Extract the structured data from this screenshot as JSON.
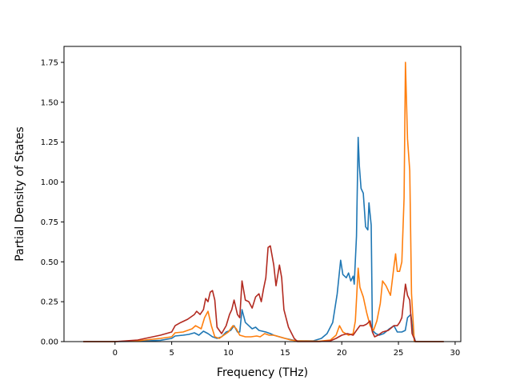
{
  "chart_data": {
    "type": "line",
    "title": "",
    "xlabel": "Frequency (THz)",
    "ylabel": "Partial Density of States",
    "xlim": [
      -4.5,
      30.5
    ],
    "ylim": [
      0,
      1.85
    ],
    "grid": false,
    "xticks": [
      0,
      5,
      10,
      15,
      20,
      25,
      30
    ],
    "xtick_labels": [
      "0",
      "5",
      "10",
      "15",
      "20",
      "25",
      "30"
    ],
    "yticks": [
      0,
      0.25,
      0.5,
      0.75,
      1.0,
      1.25,
      1.5,
      1.75
    ],
    "ytick_labels": [
      "0.00",
      "0.25",
      "0.50",
      "0.75",
      "1.00",
      "1.25",
      "1.50",
      "1.75"
    ],
    "series": [
      {
        "color": "#1f77b4",
        "points": [
          [
            -2.8,
            0
          ],
          [
            0,
            0
          ],
          [
            2,
            0.002
          ],
          [
            4,
            0.008
          ],
          [
            5,
            0.02
          ],
          [
            5.3,
            0.035
          ],
          [
            6,
            0.04
          ],
          [
            6.5,
            0.045
          ],
          [
            7,
            0.055
          ],
          [
            7.4,
            0.04
          ],
          [
            7.8,
            0.065
          ],
          [
            8.2,
            0.05
          ],
          [
            8.6,
            0.03
          ],
          [
            9,
            0.02
          ],
          [
            9.4,
            0.03
          ],
          [
            9.8,
            0.06
          ],
          [
            10.2,
            0.07
          ],
          [
            10.5,
            0.1
          ],
          [
            10.8,
            0.06
          ],
          [
            11,
            0.06
          ],
          [
            11.2,
            0.2
          ],
          [
            11.5,
            0.12
          ],
          [
            11.8,
            0.1
          ],
          [
            12.1,
            0.08
          ],
          [
            12.4,
            0.09
          ],
          [
            12.7,
            0.07
          ],
          [
            13,
            0.065
          ],
          [
            13.3,
            0.06
          ],
          [
            13.7,
            0.05
          ],
          [
            14,
            0.04
          ],
          [
            14.5,
            0.03
          ],
          [
            15,
            0.02
          ],
          [
            16,
            0.005
          ],
          [
            17.5,
            0.005
          ],
          [
            18.2,
            0.02
          ],
          [
            18.7,
            0.05
          ],
          [
            19.2,
            0.12
          ],
          [
            19.6,
            0.3
          ],
          [
            19.9,
            0.51
          ],
          [
            20.1,
            0.42
          ],
          [
            20.4,
            0.4
          ],
          [
            20.6,
            0.43
          ],
          [
            20.8,
            0.38
          ],
          [
            21.0,
            0.41
          ],
          [
            21.1,
            0.36
          ],
          [
            21.3,
            0.66
          ],
          [
            21.45,
            1.28
          ],
          [
            21.55,
            1.1
          ],
          [
            21.7,
            0.96
          ],
          [
            21.9,
            0.93
          ],
          [
            22.1,
            0.72
          ],
          [
            22.3,
            0.7
          ],
          [
            22.4,
            0.87
          ],
          [
            22.6,
            0.73
          ],
          [
            22.7,
            0.07
          ],
          [
            23.0,
            0.05
          ],
          [
            23.3,
            0.04
          ],
          [
            23.7,
            0.05
          ],
          [
            24.2,
            0.08
          ],
          [
            24.6,
            0.1
          ],
          [
            24.9,
            0.06
          ],
          [
            25.3,
            0.06
          ],
          [
            25.6,
            0.07
          ],
          [
            25.8,
            0.15
          ],
          [
            26.1,
            0.17
          ],
          [
            26.3,
            0.05
          ],
          [
            26.5,
            0
          ],
          [
            29,
            0
          ]
        ]
      },
      {
        "color": "#ff7f0e",
        "points": [
          [
            -2.8,
            0
          ],
          [
            0,
            0
          ],
          [
            2,
            0.005
          ],
          [
            4,
            0.02
          ],
          [
            5,
            0.03
          ],
          [
            5.3,
            0.055
          ],
          [
            6,
            0.06
          ],
          [
            6.8,
            0.08
          ],
          [
            7.1,
            0.1
          ],
          [
            7.6,
            0.08
          ],
          [
            7.9,
            0.15
          ],
          [
            8.2,
            0.19
          ],
          [
            8.5,
            0.1
          ],
          [
            8.8,
            0.03
          ],
          [
            9.2,
            0.02
          ],
          [
            9.6,
            0.04
          ],
          [
            10,
            0.06
          ],
          [
            10.4,
            0.1
          ],
          [
            10.7,
            0.08
          ],
          [
            11,
            0.04
          ],
          [
            11.5,
            0.03
          ],
          [
            12,
            0.03
          ],
          [
            12.5,
            0.035
          ],
          [
            12.8,
            0.03
          ],
          [
            13.2,
            0.05
          ],
          [
            13.6,
            0.04
          ],
          [
            14,
            0.04
          ],
          [
            14.5,
            0.03
          ],
          [
            15,
            0.02
          ],
          [
            15.5,
            0.01
          ],
          [
            16,
            0.005
          ],
          [
            18,
            0.002
          ],
          [
            19,
            0.01
          ],
          [
            19.5,
            0.04
          ],
          [
            19.8,
            0.1
          ],
          [
            20.1,
            0.06
          ],
          [
            20.6,
            0.04
          ],
          [
            21,
            0.05
          ],
          [
            21.2,
            0.13
          ],
          [
            21.45,
            0.46
          ],
          [
            21.6,
            0.34
          ],
          [
            21.9,
            0.28
          ],
          [
            22.2,
            0.18
          ],
          [
            22.5,
            0.1
          ],
          [
            22.8,
            0.07
          ],
          [
            23.1,
            0.13
          ],
          [
            23.4,
            0.24
          ],
          [
            23.6,
            0.38
          ],
          [
            23.9,
            0.35
          ],
          [
            24.3,
            0.29
          ],
          [
            24.6,
            0.47
          ],
          [
            24.75,
            0.55
          ],
          [
            24.9,
            0.44
          ],
          [
            25.1,
            0.44
          ],
          [
            25.3,
            0.5
          ],
          [
            25.5,
            0.9
          ],
          [
            25.62,
            1.75
          ],
          [
            25.8,
            1.27
          ],
          [
            26.0,
            1.07
          ],
          [
            26.15,
            0.3
          ],
          [
            26.4,
            0
          ],
          [
            29,
            0
          ]
        ]
      },
      {
        "color": "#b22a20",
        "points": [
          [
            -2.8,
            0
          ],
          [
            0,
            0
          ],
          [
            2,
            0.01
          ],
          [
            4,
            0.04
          ],
          [
            5,
            0.06
          ],
          [
            5.3,
            0.1
          ],
          [
            5.8,
            0.12
          ],
          [
            6.4,
            0.14
          ],
          [
            7,
            0.17
          ],
          [
            7.2,
            0.19
          ],
          [
            7.5,
            0.17
          ],
          [
            7.8,
            0.2
          ],
          [
            8.0,
            0.27
          ],
          [
            8.2,
            0.25
          ],
          [
            8.4,
            0.31
          ],
          [
            8.6,
            0.32
          ],
          [
            8.8,
            0.26
          ],
          [
            9.0,
            0.09
          ],
          [
            9.4,
            0.05
          ],
          [
            9.8,
            0.1
          ],
          [
            10.1,
            0.17
          ],
          [
            10.3,
            0.2
          ],
          [
            10.5,
            0.26
          ],
          [
            10.8,
            0.17
          ],
          [
            11,
            0.15
          ],
          [
            11.2,
            0.38
          ],
          [
            11.5,
            0.26
          ],
          [
            11.8,
            0.25
          ],
          [
            12.1,
            0.21
          ],
          [
            12.4,
            0.28
          ],
          [
            12.7,
            0.3
          ],
          [
            12.9,
            0.25
          ],
          [
            13.1,
            0.33
          ],
          [
            13.3,
            0.4
          ],
          [
            13.5,
            0.59
          ],
          [
            13.7,
            0.6
          ],
          [
            14,
            0.48
          ],
          [
            14.2,
            0.35
          ],
          [
            14.5,
            0.48
          ],
          [
            14.7,
            0.4
          ],
          [
            14.9,
            0.2
          ],
          [
            15.3,
            0.09
          ],
          [
            15.8,
            0.02
          ],
          [
            16.1,
            0
          ],
          [
            18,
            0
          ],
          [
            19,
            0.005
          ],
          [
            19.5,
            0.02
          ],
          [
            20,
            0.04
          ],
          [
            20.5,
            0.05
          ],
          [
            21,
            0.04
          ],
          [
            21.3,
            0.07
          ],
          [
            21.6,
            0.1
          ],
          [
            21.9,
            0.1
          ],
          [
            22.2,
            0.11
          ],
          [
            22.5,
            0.13
          ],
          [
            22.7,
            0.06
          ],
          [
            22.9,
            0.03
          ],
          [
            23.2,
            0.04
          ],
          [
            23.6,
            0.06
          ],
          [
            24.1,
            0.07
          ],
          [
            24.6,
            0.1
          ],
          [
            24.9,
            0.1
          ],
          [
            25.1,
            0.12
          ],
          [
            25.3,
            0.15
          ],
          [
            25.5,
            0.28
          ],
          [
            25.62,
            0.36
          ],
          [
            25.8,
            0.29
          ],
          [
            26.0,
            0.26
          ],
          [
            26.2,
            0.05
          ],
          [
            26.5,
            0
          ],
          [
            29,
            0
          ]
        ]
      }
    ]
  }
}
